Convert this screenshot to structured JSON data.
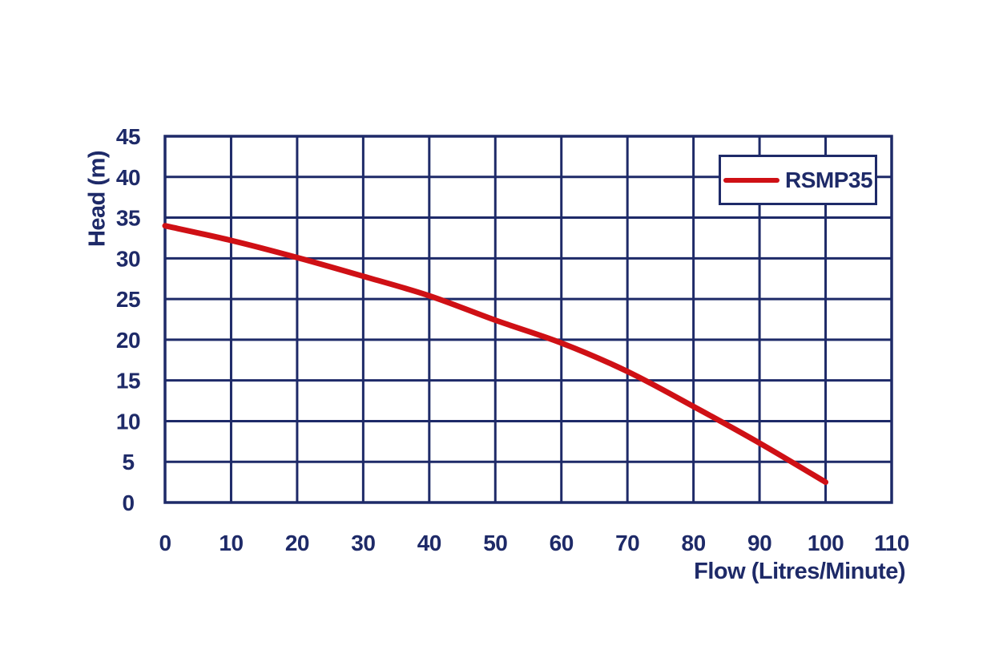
{
  "page": {
    "background": "#ffffff"
  },
  "axes": {
    "x_title": "Flow (Litres/Minute)",
    "y_title": "Head (m)"
  },
  "chart_data": {
    "type": "line",
    "title": "",
    "xlabel": "Flow (Litres/Minute)",
    "ylabel": "Head (m)",
    "xlim": [
      0,
      110
    ],
    "ylim": [
      0,
      45
    ],
    "x_ticks": [
      0,
      10,
      20,
      30,
      40,
      50,
      60,
      70,
      80,
      90,
      100,
      110
    ],
    "y_ticks": [
      0,
      5,
      10,
      15,
      20,
      25,
      30,
      35,
      40,
      45
    ],
    "grid": true,
    "legend": {
      "position": "top-right",
      "entries": [
        {
          "label": "RSMP35",
          "color": "#cf1015"
        }
      ]
    },
    "colors": {
      "grid": "#1e2a68",
      "axis_text": "#1e2a68",
      "background": "#ffffff"
    },
    "series": [
      {
        "name": "RSMP35",
        "color": "#cf1015",
        "x": [
          0,
          10,
          20,
          30,
          40,
          50,
          60,
          70,
          80,
          90,
          100
        ],
        "y": [
          34,
          32.2,
          30.1,
          27.8,
          25.4,
          22.4,
          19.6,
          16.1,
          11.8,
          7.3,
          2.5
        ]
      }
    ]
  }
}
